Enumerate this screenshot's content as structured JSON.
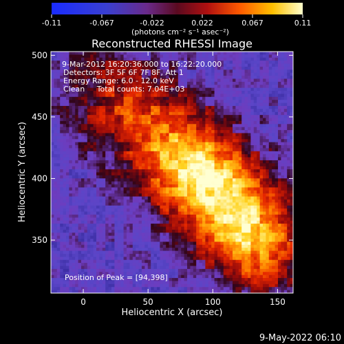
{
  "chart_data": {
    "type": "heatmap",
    "title": "Reconstructed RHESSI Image",
    "xlabel": "Heliocentric X (arcsec)",
    "ylabel": "Heliocentric Y (arcsec)",
    "xlim": [
      -25,
      162
    ],
    "ylim": [
      307,
      503
    ],
    "x_ticks": [
      0,
      50,
      100,
      150
    ],
    "y_ticks": [
      350,
      400,
      450,
      500
    ],
    "colorbar": {
      "min": -0.11,
      "max": 0.11,
      "ticks": [
        "-0.11",
        "-0.067",
        "-0.022",
        "0.022",
        "0.067",
        "0.11"
      ],
      "label": "(photons cm⁻² s⁻¹ asec⁻²)"
    },
    "annotations": {
      "time_range": "9-Mar-2012 16:20:36.000 to 16:22:20.000",
      "detectors": "Detectors: 3F 5F 6F 7F 8F, Att 1",
      "energy": "Energy Range: 6.0 - 12.0 keV",
      "clean": "Clean     Total counts: 7.04E+03",
      "peak": "Position of Peak = [94,398]"
    },
    "peak_position": [
      94,
      398
    ],
    "grid": false
  },
  "footer_date": "9-May-2022 06:10"
}
